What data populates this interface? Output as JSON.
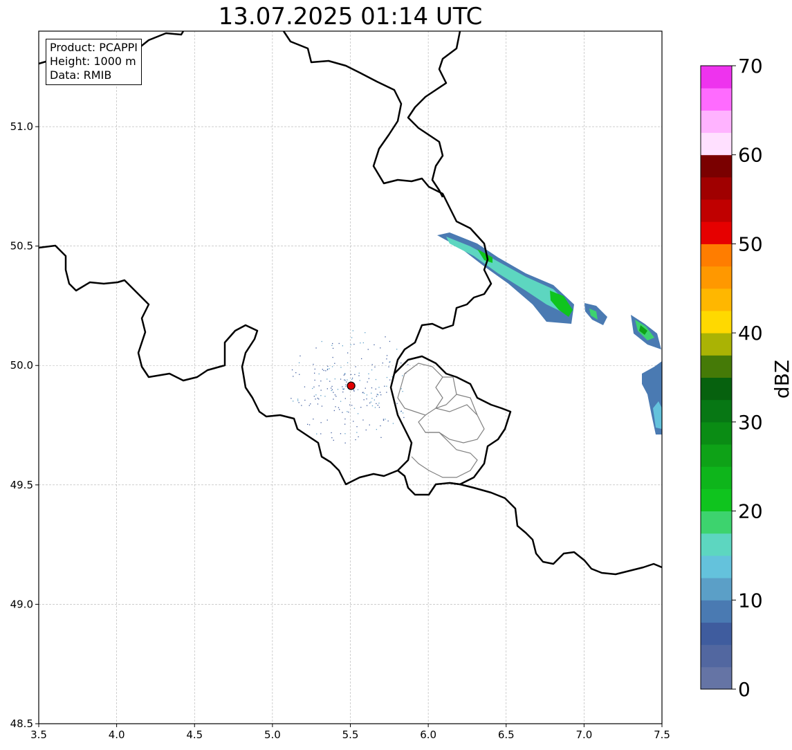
{
  "title": "13.07.2025 01:14 UTC",
  "info": {
    "product": "Product: PCAPPI",
    "height": "Height: 1000 m",
    "data": "Data: RMIB"
  },
  "map": {
    "lon_range": [
      3.5,
      7.5
    ],
    "lat_range": [
      48.5,
      51.4
    ],
    "x_ticks": [
      "3.5",
      "4.0",
      "4.5",
      "5.0",
      "5.5",
      "6.0",
      "6.5",
      "7.0",
      "7.5"
    ],
    "y_ticks": [
      "48.5",
      "49.0",
      "49.5",
      "50.0",
      "50.5",
      "51.0"
    ],
    "grid": true,
    "radar_site": {
      "lon": 5.505,
      "lat": 49.915,
      "color": "#e00000"
    },
    "precipitation_bands": [
      {
        "from": [
          6.1,
          50.55
        ],
        "to": [
          6.9,
          50.22
        ],
        "color": "#4a7ab2"
      },
      {
        "from": [
          6.6,
          50.28
        ],
        "to": [
          6.95,
          50.18
        ],
        "color": "#0fc41e"
      },
      {
        "from": [
          7.0,
          50.25
        ],
        "to": [
          7.15,
          50.17
        ],
        "color": "#4a7ab2"
      },
      {
        "from": [
          7.3,
          50.2
        ],
        "to": [
          7.5,
          50.07
        ],
        "color": "#3dd36e"
      },
      {
        "from": [
          7.4,
          49.98
        ],
        "to": [
          7.5,
          49.72
        ],
        "color": "#4a7ab2"
      }
    ]
  },
  "colorbar": {
    "label": "dBZ",
    "ticks": [
      "0",
      "10",
      "20",
      "30",
      "40",
      "50",
      "60",
      "70"
    ],
    "colors": [
      "#6574a5",
      "#5267a0",
      "#3f5c9e",
      "#4a7ab2",
      "#5b9fc7",
      "#64c2dc",
      "#5dd6c0",
      "#3dd36e",
      "#0fc41e",
      "#0eb51b",
      "#0ea217",
      "#0a8c14",
      "#077714",
      "#06610e",
      "#457a07",
      "#aab304",
      "#ffd900",
      "#ffb700",
      "#ff9800",
      "#ff7d00",
      "#e60000",
      "#c00000",
      "#a00000",
      "#7a0000",
      "#ffe0ff",
      "#ffb3ff",
      "#ff6bff",
      "#ee33ee"
    ]
  }
}
